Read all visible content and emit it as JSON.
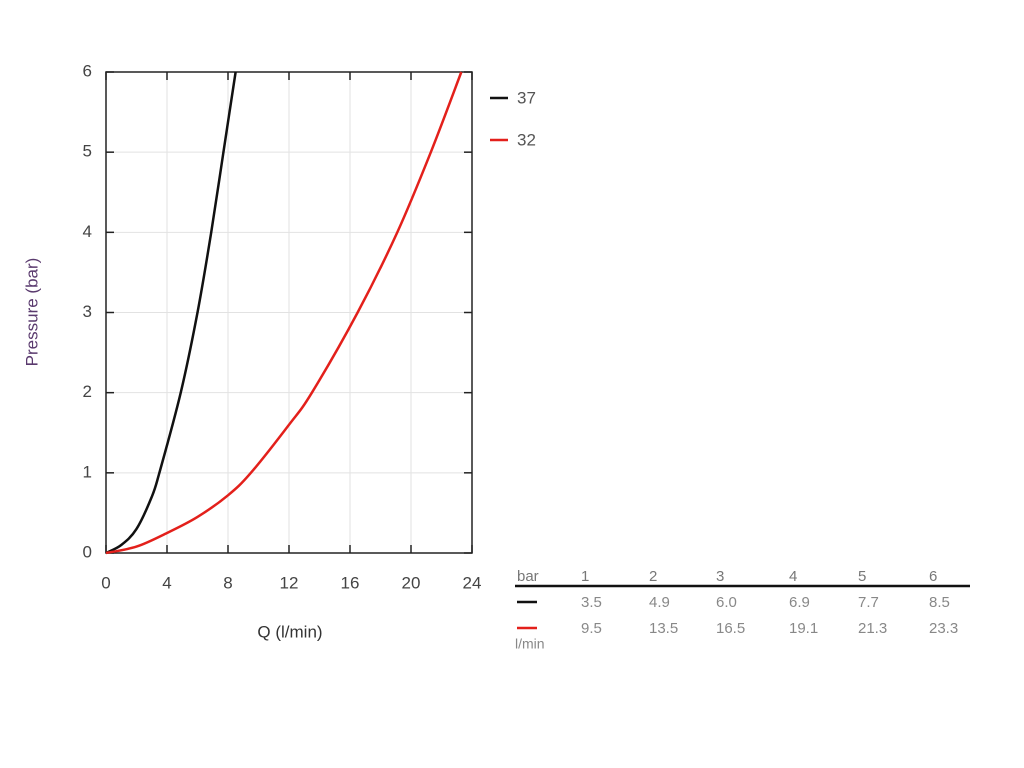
{
  "chart_data": {
    "type": "line",
    "xlabel": "Q (l/min)",
    "ylabel": "Pressure (bar)",
    "xlim": [
      0,
      24
    ],
    "xticks": [
      0,
      4,
      8,
      12,
      16,
      20,
      24
    ],
    "ylim": [
      0,
      6
    ],
    "yticks": [
      0,
      1,
      2,
      3,
      4,
      5,
      6
    ],
    "grid": true,
    "legend": "right",
    "series": [
      {
        "name": "37",
        "color": "#111111",
        "x": [
          0,
          1,
          2,
          3,
          3.5,
          4.9,
          6,
          6.9,
          7.7,
          8.5
        ],
        "values": [
          0,
          0.1,
          0.3,
          0.7,
          1,
          2,
          3,
          4,
          5,
          6
        ]
      },
      {
        "name": "32",
        "color": "#e3201b",
        "x": [
          0,
          2,
          4,
          6,
          8,
          9.5,
          12,
          13.5,
          16.5,
          19.1,
          21.3,
          23.3
        ],
        "values": [
          0,
          0.08,
          0.25,
          0.45,
          0.72,
          1,
          1.6,
          2,
          3,
          4,
          5,
          6
        ]
      }
    ]
  },
  "table": {
    "header": [
      "bar",
      "1",
      "2",
      "3",
      "4",
      "5",
      "6"
    ],
    "rows": [
      [
        "3.5",
        "4.9",
        "6.0",
        "6.9",
        "7.7",
        "8.5"
      ],
      [
        "9.5",
        "13.5",
        "16.5",
        "19.1",
        "21.3",
        "23.3"
      ]
    ],
    "unit": "l/min"
  }
}
